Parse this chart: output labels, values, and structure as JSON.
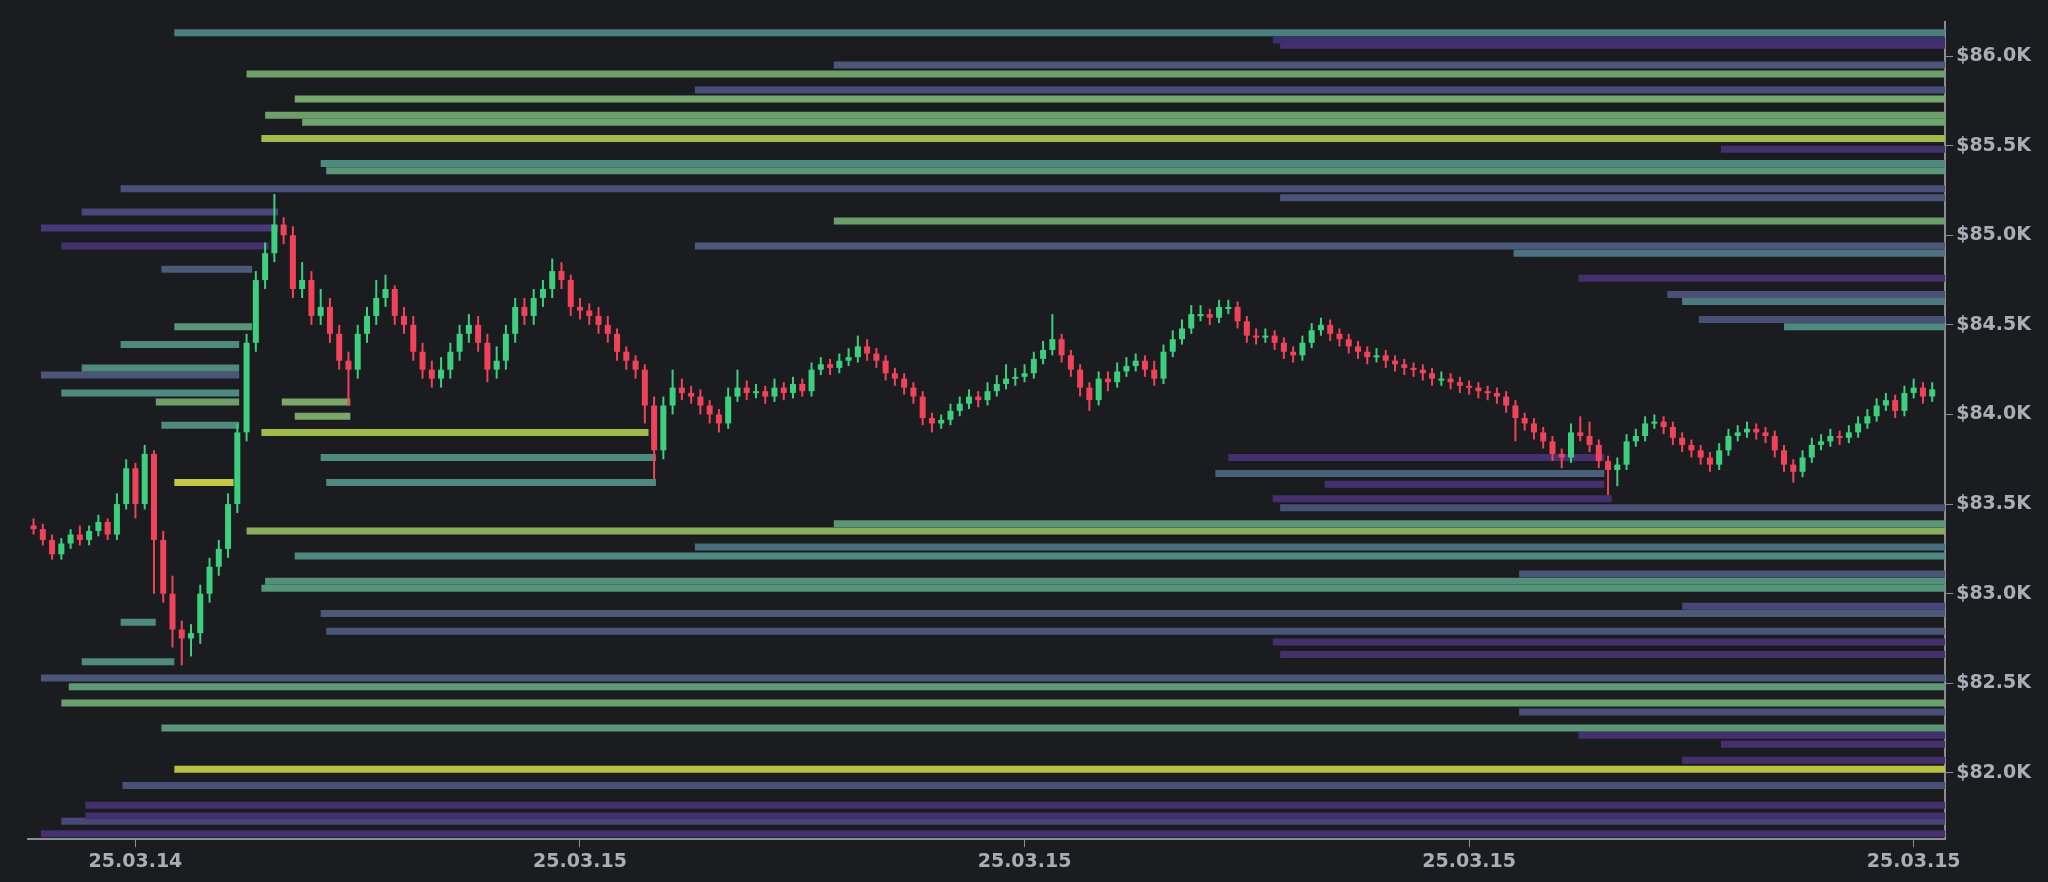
{
  "chart_data": {
    "type": "candlestick",
    "x": [
      "--03-14T21:05",
      "--03-14T21:10",
      "--03-14T21:15",
      "--03-14T21:20",
      "--03-14T21:25",
      "--03-14T21:30",
      "--03-14T21:35",
      "--03-14T21:40",
      "--03-14T21:45",
      "--03-14T21:50",
      "--03-14T21:55",
      "--03-14T22:00",
      "--03-14T22:05",
      "--03-14T22:10",
      "--03-14T22:15",
      "--03-14T22:20",
      "--03-14T22:25",
      "--03-14T22:30",
      "--03-14T22:35",
      "--03-14T22:40",
      "--03-14T22:45",
      "--03-14T22:50",
      "--03-14T22:55",
      "--03-14T23:00",
      "--03-14T23:05",
      "--03-14T23:10",
      "--03-14T23:15",
      "--03-14T23:20",
      "--03-14T23:25",
      "--03-14T23:30",
      "--03-14T23:35",
      "--03-14T23:40",
      "--03-14T23:45",
      "--03-14T23:50",
      "--03-14T23:55",
      "--03-15T00:00",
      "--03-15T00:05",
      "--03-15T00:10",
      "--03-15T00:15",
      "--03-15T00:20",
      "--03-15T00:25",
      "--03-15T00:30",
      "--03-15T00:35",
      "--03-15T00:40",
      "--03-15T00:45",
      "--03-15T00:50",
      "--03-15T00:55",
      "--03-15T01:00",
      "--03-15T01:05",
      "--03-15T01:10",
      "--03-15T01:15",
      "--03-15T01:20",
      "--03-15T01:25",
      "--03-15T01:30",
      "--03-15T01:35",
      "--03-15T01:40",
      "--03-15T01:45",
      "--03-15T01:50",
      "--03-15T01:55",
      "--03-15T02:00",
      "--03-15T02:05",
      "--03-15T02:10",
      "--03-15T02:15",
      "--03-15T02:20",
      "--03-15T02:25",
      "--03-15T02:30",
      "--03-15T02:35",
      "--03-15T02:40",
      "--03-15T02:45",
      "--03-15T02:50",
      "--03-15T02:55",
      "--03-15T03:00",
      "--03-15T03:05",
      "--03-15T03:10",
      "--03-15T03:15",
      "--03-15T03:20",
      "--03-15T03:25",
      "--03-15T03:30",
      "--03-15T03:35",
      "--03-15T03:40",
      "--03-15T03:45",
      "--03-15T03:50",
      "--03-15T03:55",
      "--03-15T04:00",
      "--03-15T04:05",
      "--03-15T04:10",
      "--03-15T04:15",
      "--03-15T04:20",
      "--03-15T04:25",
      "--03-15T04:30",
      "--03-15T04:35",
      "--03-15T04:40",
      "--03-15T04:45",
      "--03-15T04:50",
      "--03-15T04:55",
      "--03-15T05:00",
      "--03-15T05:05",
      "--03-15T05:10",
      "--03-15T05:15",
      "--03-15T05:20",
      "--03-15T05:25",
      "--03-15T05:30",
      "--03-15T05:35",
      "--03-15T05:40",
      "--03-15T05:45",
      "--03-15T05:50",
      "--03-15T05:55",
      "--03-15T06:00",
      "--03-15T06:05",
      "--03-15T06:10",
      "--03-15T06:15",
      "--03-15T06:20",
      "--03-15T06:25",
      "--03-15T06:30",
      "--03-15T06:35",
      "--03-15T06:40",
      "--03-15T06:45",
      "--03-15T06:50",
      "--03-15T06:55",
      "--03-15T07:00",
      "--03-15T07:05",
      "--03-15T07:10",
      "--03-15T07:15",
      "--03-15T07:20",
      "--03-15T07:25",
      "--03-15T07:30",
      "--03-15T07:35",
      "--03-15T07:40",
      "--03-15T07:45",
      "--03-15T07:50",
      "--03-15T07:55",
      "--03-15T08:00",
      "--03-15T08:05",
      "--03-15T08:10",
      "--03-15T08:15",
      "--03-15T08:20",
      "--03-15T08:25",
      "--03-15T08:30",
      "--03-15T08:35",
      "--03-15T08:40",
      "--03-15T08:45",
      "--03-15T08:50",
      "--03-15T08:55",
      "--03-15T09:00",
      "--03-15T09:05",
      "--03-15T09:10",
      "--03-15T09:15",
      "--03-15T09:20",
      "--03-15T09:25",
      "--03-15T09:30",
      "--03-15T09:35",
      "--03-15T09:40",
      "--03-15T09:45",
      "--03-15T09:50",
      "--03-15T09:55",
      "--03-15T10:00",
      "--03-15T10:05",
      "--03-15T10:10",
      "--03-15T10:15",
      "--03-15T10:20",
      "--03-15T10:25",
      "--03-15T10:30",
      "--03-15T10:35",
      "--03-15T10:40",
      "--03-15T10:45",
      "--03-15T10:50",
      "--03-15T10:55",
      "--03-15T11:00",
      "--03-15T11:05",
      "--03-15T11:10",
      "--03-15T11:15",
      "--03-15T11:20",
      "--03-15T11:25",
      "--03-15T11:30",
      "--03-15T11:35",
      "--03-15T11:40",
      "--03-15T11:45",
      "--03-15T11:50",
      "--03-15T11:55",
      "--03-15T12:00",
      "--03-15T12:05",
      "--03-15T12:10",
      "--03-15T12:15",
      "--03-15T12:20",
      "--03-15T12:25",
      "--03-15T12:30",
      "--03-15T12:35",
      "--03-15T12:40",
      "--03-15T12:45",
      "--03-15T12:50",
      "--03-15T12:55",
      "--03-15T13:00",
      "--03-15T13:05",
      "--03-15T13:10",
      "--03-15T13:15",
      "--03-15T13:20",
      "--03-15T13:25",
      "--03-15T13:30",
      "--03-15T13:35",
      "--03-15T13:40",
      "--03-15T13:45",
      "--03-15T13:50",
      "--03-15T13:55",
      "--03-15T14:00",
      "--03-15T14:05",
      "--03-15T14:10"
    ],
    "ohlc": [
      [
        83380,
        83420,
        83330,
        83360
      ],
      [
        83360,
        83390,
        83270,
        83300
      ],
      [
        83300,
        83330,
        83190,
        83220
      ],
      [
        83220,
        83310,
        83190,
        83280
      ],
      [
        83280,
        83360,
        83250,
        83330
      ],
      [
        83330,
        83380,
        83270,
        83300
      ],
      [
        83300,
        83380,
        83270,
        83350
      ],
      [
        83350,
        83440,
        83320,
        83400
      ],
      [
        83400,
        83420,
        83300,
        83330
      ],
      [
        83330,
        83560,
        83300,
        83500
      ],
      [
        83500,
        83750,
        83470,
        83700
      ],
      [
        83700,
        83730,
        83420,
        83500
      ],
      [
        83500,
        83830,
        83470,
        83780
      ],
      [
        83780,
        83800,
        83000,
        83300
      ],
      [
        83300,
        83350,
        82950,
        83000
      ],
      [
        83000,
        83100,
        82700,
        82800
      ],
      [
        82800,
        82850,
        82600,
        82750
      ],
      [
        82750,
        82830,
        82650,
        82780
      ],
      [
        82780,
        83050,
        82720,
        83000
      ],
      [
        83000,
        83200,
        82950,
        83150
      ],
      [
        83150,
        83300,
        83100,
        83250
      ],
      [
        83250,
        83560,
        83200,
        83500
      ],
      [
        83500,
        83950,
        83450,
        83900
      ],
      [
        83900,
        84450,
        83850,
        84400
      ],
      [
        84400,
        84800,
        84350,
        84750
      ],
      [
        84750,
        84960,
        84700,
        84900
      ],
      [
        84900,
        85230,
        84850,
        85060
      ],
      [
        85060,
        85100,
        84950,
        85000
      ],
      [
        85000,
        85050,
        84650,
        84700
      ],
      [
        84700,
        84850,
        84650,
        84750
      ],
      [
        84750,
        84800,
        84500,
        84550
      ],
      [
        84550,
        84700,
        84500,
        84600
      ],
      [
        84600,
        84650,
        84400,
        84450
      ],
      [
        84450,
        84500,
        84250,
        84300
      ],
      [
        84300,
        84350,
        84050,
        84250
      ],
      [
        84250,
        84500,
        84200,
        84450
      ],
      [
        84450,
        84600,
        84400,
        84550
      ],
      [
        84550,
        84750,
        84500,
        84650
      ],
      [
        84650,
        84780,
        84600,
        84700
      ],
      [
        84700,
        84720,
        84500,
        84550
      ],
      [
        84550,
        84600,
        84450,
        84500
      ],
      [
        84500,
        84550,
        84300,
        84350
      ],
      [
        84350,
        84400,
        84200,
        84250
      ],
      [
        84250,
        84300,
        84150,
        84200
      ],
      [
        84200,
        84320,
        84150,
        84250
      ],
      [
        84250,
        84400,
        84200,
        84350
      ],
      [
        84350,
        84500,
        84300,
        84450
      ],
      [
        84450,
        84560,
        84400,
        84500
      ],
      [
        84500,
        84550,
        84350,
        84400
      ],
      [
        84400,
        84450,
        84180,
        84250
      ],
      [
        84250,
        84380,
        84200,
        84300
      ],
      [
        84300,
        84500,
        84250,
        84450
      ],
      [
        84450,
        84650,
        84400,
        84600
      ],
      [
        84600,
        84650,
        84500,
        84550
      ],
      [
        84550,
        84700,
        84500,
        84650
      ],
      [
        84650,
        84750,
        84600,
        84700
      ],
      [
        84700,
        84870,
        84650,
        84800
      ],
      [
        84800,
        84850,
        84700,
        84750
      ],
      [
        84750,
        84780,
        84550,
        84600
      ],
      [
        84600,
        84650,
        84530,
        84580
      ],
      [
        84580,
        84620,
        84500,
        84550
      ],
      [
        84550,
        84600,
        84450,
        84500
      ],
      [
        84500,
        84550,
        84400,
        84450
      ],
      [
        84450,
        84480,
        84300,
        84350
      ],
      [
        84350,
        84380,
        84250,
        84300
      ],
      [
        84300,
        84330,
        84200,
        84250
      ],
      [
        84250,
        84280,
        83950,
        84050
      ],
      [
        84050,
        84100,
        83640,
        83800
      ],
      [
        83800,
        84100,
        83750,
        84050
      ],
      [
        84050,
        84250,
        84000,
        84150
      ],
      [
        84150,
        84200,
        84080,
        84120
      ],
      [
        84120,
        84160,
        84060,
        84100
      ],
      [
        84100,
        84140,
        84000,
        84050
      ],
      [
        84050,
        84080,
        83950,
        84000
      ],
      [
        84000,
        84030,
        83900,
        83950
      ],
      [
        83950,
        84150,
        83920,
        84100
      ],
      [
        84100,
        84250,
        84070,
        84150
      ],
      [
        84150,
        84190,
        84080,
        84120
      ],
      [
        84120,
        84170,
        84090,
        84130
      ],
      [
        84130,
        84160,
        84060,
        84100
      ],
      [
        84100,
        84200,
        84070,
        84150
      ],
      [
        84150,
        84180,
        84080,
        84120
      ],
      [
        84120,
        84210,
        84090,
        84170
      ],
      [
        84170,
        84200,
        84100,
        84130
      ],
      [
        84130,
        84290,
        84100,
        84250
      ],
      [
        84250,
        84320,
        84220,
        84280
      ],
      [
        84280,
        84310,
        84220,
        84260
      ],
      [
        84260,
        84340,
        84230,
        84300
      ],
      [
        84300,
        84370,
        84270,
        84320
      ],
      [
        84320,
        84440,
        84290,
        84380
      ],
      [
        84380,
        84420,
        84300,
        84340
      ],
      [
        84340,
        84370,
        84260,
        84300
      ],
      [
        84300,
        84330,
        84190,
        84230
      ],
      [
        84230,
        84260,
        84160,
        84200
      ],
      [
        84200,
        84230,
        84110,
        84150
      ],
      [
        84150,
        84180,
        84060,
        84100
      ],
      [
        84100,
        84130,
        83940,
        83980
      ],
      [
        83980,
        84010,
        83900,
        83950
      ],
      [
        83950,
        84000,
        83920,
        83970
      ],
      [
        83970,
        84060,
        83940,
        84020
      ],
      [
        84020,
        84100,
        83990,
        84060
      ],
      [
        84060,
        84140,
        84030,
        84100
      ],
      [
        84100,
        84130,
        84040,
        84080
      ],
      [
        84080,
        84180,
        84050,
        84130
      ],
      [
        84130,
        84220,
        84100,
        84170
      ],
      [
        84170,
        84280,
        84140,
        84200
      ],
      [
        84200,
        84260,
        84160,
        84210
      ],
      [
        84210,
        84280,
        84180,
        84230
      ],
      [
        84230,
        84350,
        84200,
        84310
      ],
      [
        84310,
        84410,
        84280,
        84360
      ],
      [
        84360,
        84560,
        84330,
        84420
      ],
      [
        84420,
        84450,
        84290,
        84330
      ],
      [
        84330,
        84360,
        84210,
        84250
      ],
      [
        84250,
        84280,
        84100,
        84150
      ],
      [
        84150,
        84180,
        84020,
        84080
      ],
      [
        84080,
        84240,
        84050,
        84200
      ],
      [
        84200,
        84240,
        84130,
        84180
      ],
      [
        84180,
        84290,
        84150,
        84240
      ],
      [
        84240,
        84320,
        84210,
        84270
      ],
      [
        84270,
        84340,
        84240,
        84300
      ],
      [
        84300,
        84330,
        84210,
        84250
      ],
      [
        84250,
        84300,
        84160,
        84200
      ],
      [
        84200,
        84390,
        84170,
        84350
      ],
      [
        84350,
        84470,
        84320,
        84420
      ],
      [
        84420,
        84530,
        84390,
        84480
      ],
      [
        84480,
        84610,
        84450,
        84560
      ],
      [
        84560,
        84610,
        84520,
        84560
      ],
      [
        84560,
        84590,
        84500,
        84540
      ],
      [
        84540,
        84640,
        84510,
        84600
      ],
      [
        84600,
        84640,
        84560,
        84600
      ],
      [
        84600,
        84630,
        84480,
        84520
      ],
      [
        84520,
        84550,
        84400,
        84440
      ],
      [
        84440,
        84480,
        84390,
        84430
      ],
      [
        84430,
        84480,
        84400,
        84440
      ],
      [
        84440,
        84470,
        84360,
        84400
      ],
      [
        84400,
        84430,
        84310,
        84350
      ],
      [
        84350,
        84380,
        84290,
        84330
      ],
      [
        84330,
        84440,
        84300,
        84400
      ],
      [
        84400,
        84510,
        84370,
        84470
      ],
      [
        84470,
        84540,
        84440,
        84500
      ],
      [
        84500,
        84530,
        84410,
        84450
      ],
      [
        84450,
        84480,
        84380,
        84420
      ],
      [
        84420,
        84450,
        84340,
        84380
      ],
      [
        84380,
        84410,
        84310,
        84350
      ],
      [
        84350,
        84380,
        84280,
        84320
      ],
      [
        84320,
        84370,
        84290,
        84330
      ],
      [
        84330,
        84360,
        84260,
        84300
      ],
      [
        84300,
        84330,
        84240,
        84280
      ],
      [
        84280,
        84310,
        84220,
        84260
      ],
      [
        84260,
        84290,
        84210,
        84250
      ],
      [
        84250,
        84280,
        84190,
        84230
      ],
      [
        84230,
        84260,
        84160,
        84200
      ],
      [
        84200,
        84240,
        84160,
        84200
      ],
      [
        84200,
        84230,
        84140,
        84180
      ],
      [
        84180,
        84210,
        84120,
        84160
      ],
      [
        84160,
        84190,
        84110,
        84150
      ],
      [
        84150,
        84180,
        84090,
        84130
      ],
      [
        84130,
        84160,
        84080,
        84120
      ],
      [
        84120,
        84150,
        84060,
        84100
      ],
      [
        84100,
        84130,
        84010,
        84050
      ],
      [
        84050,
        84080,
        83850,
        83980
      ],
      [
        83980,
        84010,
        83910,
        83950
      ],
      [
        83950,
        83980,
        83860,
        83900
      ],
      [
        83900,
        83930,
        83810,
        83850
      ],
      [
        83850,
        83880,
        83740,
        83780
      ],
      [
        83780,
        83810,
        83700,
        83760
      ],
      [
        83760,
        83950,
        83730,
        83900
      ],
      [
        83900,
        83990,
        83850,
        83880
      ],
      [
        83880,
        83960,
        83790,
        83830
      ],
      [
        83830,
        83860,
        83700,
        83740
      ],
      [
        83740,
        83770,
        83550,
        83690
      ],
      [
        83690,
        83760,
        83600,
        83720
      ],
      [
        83720,
        83890,
        83690,
        83850
      ],
      [
        83850,
        83920,
        83820,
        83880
      ],
      [
        83880,
        83990,
        83850,
        83950
      ],
      [
        83950,
        84000,
        83920,
        83960
      ],
      [
        83960,
        83990,
        83890,
        83930
      ],
      [
        83930,
        83960,
        83830,
        83870
      ],
      [
        83870,
        83900,
        83790,
        83830
      ],
      [
        83830,
        83860,
        83760,
        83800
      ],
      [
        83800,
        83830,
        83720,
        83760
      ],
      [
        83760,
        83790,
        83680,
        83720
      ],
      [
        83720,
        83840,
        83690,
        83800
      ],
      [
        83800,
        83920,
        83770,
        83880
      ],
      [
        83880,
        83940,
        83850,
        83900
      ],
      [
        83900,
        83960,
        83870,
        83920
      ],
      [
        83920,
        83950,
        83860,
        83900
      ],
      [
        83900,
        83930,
        83840,
        83880
      ],
      [
        83880,
        83910,
        83760,
        83800
      ],
      [
        83800,
        83830,
        83680,
        83720
      ],
      [
        83720,
        83750,
        83620,
        83680
      ],
      [
        83680,
        83800,
        83650,
        83760
      ],
      [
        83760,
        83870,
        83730,
        83830
      ],
      [
        83830,
        83890,
        83800,
        83850
      ],
      [
        83850,
        83920,
        83820,
        83880
      ],
      [
        83880,
        83910,
        83830,
        83870
      ],
      [
        83870,
        83940,
        83840,
        83900
      ],
      [
        83900,
        83990,
        83870,
        83950
      ],
      [
        83950,
        84030,
        83920,
        83990
      ],
      [
        83990,
        84090,
        83960,
        84050
      ],
      [
        84050,
        84120,
        84020,
        84080
      ],
      [
        84080,
        84110,
        83980,
        84020
      ],
      [
        84020,
        84160,
        83990,
        84120
      ],
      [
        84120,
        84200,
        84090,
        84150
      ],
      [
        84150,
        84180,
        84060,
        84100
      ],
      [
        84100,
        84180,
        84070,
        84140
      ]
    ],
    "series": [
      {
        "type": "line",
        "x": [
          "--03-14T22:21",
          "--03-15T14:17"
        ],
        "values": [
          86130,
          86130
        ],
        "color": "#4a7f80"
      },
      {
        "type": "line",
        "x": [
          "--03-15T08:14",
          "--03-15T14:17"
        ],
        "values": [
          86090,
          86090
        ],
        "color": "#3d2f6b"
      },
      {
        "type": "line",
        "x": [
          "--03-15T08:18",
          "--03-15T14:17"
        ],
        "values": [
          86060,
          86060
        ],
        "color": "#45306e"
      },
      {
        "type": "line",
        "x": [
          "--03-15T04:17",
          "--03-15T14:17"
        ],
        "values": [
          85950,
          85950
        ],
        "color": "#4a5778"
      },
      {
        "type": "line",
        "x": [
          "--03-14T23:00",
          "--03-15T14:17"
        ],
        "values": [
          85900,
          85900
        ],
        "color": "#6e9f6a"
      },
      {
        "type": "line",
        "x": [
          "--03-15T03:02",
          "--03-15T14:17"
        ],
        "values": [
          85810,
          85810
        ],
        "color": "#4a4f78"
      },
      {
        "type": "line",
        "x": [
          "--03-14T23:26",
          "--03-15T14:17"
        ],
        "values": [
          85760,
          85760
        ],
        "color": "#75a86a"
      },
      {
        "type": "line",
        "x": [
          "--03-14T23:10",
          "--03-15T14:17"
        ],
        "values": [
          85670,
          85670
        ],
        "color": "#6e9f6a"
      },
      {
        "type": "line",
        "x": [
          "--03-14T23:30",
          "--03-15T14:17"
        ],
        "values": [
          85630,
          85630
        ],
        "color": "#6ba46c"
      },
      {
        "type": "line",
        "x": [
          "--03-14T23:08",
          "--03-15T14:17"
        ],
        "values": [
          85540,
          85540
        ],
        "color": "#a0bb4a"
      },
      {
        "type": "line",
        "x": [
          "--03-15T12:16",
          "--03-15T14:17"
        ],
        "values": [
          85480,
          85480
        ],
        "color": "#45306e"
      },
      {
        "type": "line",
        "x": [
          "--03-14T23:40",
          "--03-15T14:17"
        ],
        "values": [
          85400,
          85400
        ],
        "color": "#4e8a80"
      },
      {
        "type": "line",
        "x": [
          "--03-14T23:43",
          "--03-15T14:17"
        ],
        "values": [
          85360,
          85360
        ],
        "color": "#5a9678"
      },
      {
        "type": "line",
        "x": [
          "--03-14T21:52",
          "--03-15T14:17"
        ],
        "values": [
          85260,
          85260
        ],
        "color": "#4a5078"
      },
      {
        "type": "line",
        "x": [
          "--03-15T08:18",
          "--03-15T14:17"
        ],
        "values": [
          85210,
          85210
        ],
        "color": "#4a5578"
      },
      {
        "type": "line",
        "x": [
          "--03-14T21:31",
          "--03-14T23:17"
        ],
        "values": [
          85130,
          85130
        ],
        "color": "#4a4678"
      },
      {
        "type": "line",
        "x": [
          "--03-15T04:17",
          "--03-15T14:17"
        ],
        "values": [
          85080,
          85080
        ],
        "color": "#6a9f6c"
      },
      {
        "type": "line",
        "x": [
          "--03-14T21:09",
          "--03-14T23:17"
        ],
        "values": [
          85040,
          85040
        ],
        "color": "#483a78"
      },
      {
        "type": "line",
        "x": [
          "--03-14T21:20",
          "--03-14T23:12"
        ],
        "values": [
          84940,
          84940
        ],
        "color": "#45306e"
      },
      {
        "type": "line",
        "x": [
          "--03-15T03:02",
          "--03-15T14:17"
        ],
        "values": [
          84940,
          84940
        ],
        "color": "#4a5a78"
      },
      {
        "type": "line",
        "x": [
          "--03-15T10:24",
          "--03-15T14:17"
        ],
        "values": [
          84900,
          84900
        ],
        "color": "#4e7080"
      },
      {
        "type": "line",
        "x": [
          "--03-14T22:14",
          "--03-14T23:03"
        ],
        "values": [
          84810,
          84810
        ],
        "color": "#4a5a78"
      },
      {
        "type": "line",
        "x": [
          "--03-15T10:59",
          "--03-15T14:17"
        ],
        "values": [
          84760,
          84760
        ],
        "color": "#45306e"
      },
      {
        "type": "line",
        "x": [
          "--03-15T11:47",
          "--03-15T14:17"
        ],
        "values": [
          84670,
          84670
        ],
        "color": "#4a5078"
      },
      {
        "type": "line",
        "x": [
          "--03-15T11:55",
          "--03-15T14:17"
        ],
        "values": [
          84630,
          84630
        ],
        "color": "#4f7a80"
      },
      {
        "type": "line",
        "x": [
          "--03-15T12:04",
          "--03-15T14:17"
        ],
        "values": [
          84530,
          84530
        ],
        "color": "#4a4f78"
      },
      {
        "type": "line",
        "x": [
          "--03-14T22:21",
          "--03-14T23:03"
        ],
        "values": [
          84490,
          84490
        ],
        "color": "#5a9678"
      },
      {
        "type": "line",
        "x": [
          "--03-15T12:50",
          "--03-15T14:17"
        ],
        "values": [
          84490,
          84490
        ],
        "color": "#4e8a80"
      },
      {
        "type": "line",
        "x": [
          "--03-14T21:52",
          "--03-14T22:56"
        ],
        "values": [
          84390,
          84390
        ],
        "color": "#4e8a80"
      },
      {
        "type": "line",
        "x": [
          "--03-14T21:31",
          "--03-14T22:56"
        ],
        "values": [
          84260,
          84260
        ],
        "color": "#4e8a80"
      },
      {
        "type": "line",
        "x": [
          "--03-14T21:09",
          "--03-14T22:56"
        ],
        "values": [
          84220,
          84220
        ],
        "color": "#4a5578"
      },
      {
        "type": "line",
        "x": [
          "--03-14T21:20",
          "--03-14T22:56"
        ],
        "values": [
          84120,
          84120
        ],
        "color": "#4e8a80"
      },
      {
        "type": "line",
        "x": [
          "--03-14T22:11",
          "--03-14T22:56"
        ],
        "values": [
          84070,
          84070
        ],
        "color": "#6e9f6a"
      },
      {
        "type": "line",
        "x": [
          "--03-14T23:19",
          "--03-14T23:56"
        ],
        "values": [
          84070,
          84070
        ],
        "color": "#7aa868"
      },
      {
        "type": "line",
        "x": [
          "--03-14T22:14",
          "--03-14T22:56"
        ],
        "values": [
          83940,
          83940
        ],
        "color": "#4e8a80"
      },
      {
        "type": "line",
        "x": [
          "--03-14T23:26",
          "--03-14T23:56"
        ],
        "values": [
          83990,
          83990
        ],
        "color": "#7aa868"
      },
      {
        "type": "line",
        "x": [
          "--03-14T23:08",
          "--03-15T02:37"
        ],
        "values": [
          83900,
          83900
        ],
        "color": "#a0bb4a"
      },
      {
        "type": "line",
        "x": [
          "--03-14T23:40",
          "--03-15T02:41"
        ],
        "values": [
          83760,
          83760
        ],
        "color": "#4e8a80"
      },
      {
        "type": "line",
        "x": [
          "--03-14T22:21",
          "--03-14T22:53"
        ],
        "values": [
          83620,
          83620
        ],
        "color": "#c4c845"
      },
      {
        "type": "line",
        "x": [
          "--03-14T23:43",
          "--03-15T02:41"
        ],
        "values": [
          83620,
          83620
        ],
        "color": "#4e8a80"
      },
      {
        "type": "line",
        "x": [
          "--03-15T07:50",
          "--03-15T11:13"
        ],
        "values": [
          83760,
          83760
        ],
        "color": "#45306e"
      },
      {
        "type": "line",
        "x": [
          "--03-15T07:43",
          "--03-15T11:13"
        ],
        "values": [
          83670,
          83670
        ],
        "color": "#4a6078"
      },
      {
        "type": "line",
        "x": [
          "--03-15T08:42",
          "--03-15T11:13"
        ],
        "values": [
          83610,
          83610
        ],
        "color": "#45306e"
      },
      {
        "type": "line",
        "x": [
          "--03-15T08:14",
          "--03-15T11:17"
        ],
        "values": [
          83530,
          83530
        ],
        "color": "#45306e"
      },
      {
        "type": "line",
        "x": [
          "--03-15T08:18",
          "--03-15T14:17"
        ],
        "values": [
          83480,
          83480
        ],
        "color": "#4a4f78"
      },
      {
        "type": "line",
        "x": [
          "--03-15T04:17",
          "--03-15T14:17"
        ],
        "values": [
          83390,
          83390
        ],
        "color": "#5a9678"
      },
      {
        "type": "line",
        "x": [
          "--03-14T23:00",
          "--03-15T14:17"
        ],
        "values": [
          83350,
          83350
        ],
        "color": "#8aad5c"
      },
      {
        "type": "line",
        "x": [
          "--03-15T03:02",
          "--03-15T14:17"
        ],
        "values": [
          83260,
          83260
        ],
        "color": "#4a7080"
      },
      {
        "type": "line",
        "x": [
          "--03-14T23:26",
          "--03-15T14:17"
        ],
        "values": [
          83210,
          83210
        ],
        "color": "#4e8a80"
      },
      {
        "type": "line",
        "x": [
          "--03-15T10:27",
          "--03-15T14:17"
        ],
        "values": [
          83110,
          83110
        ],
        "color": "#4a5578"
      },
      {
        "type": "line",
        "x": [
          "--03-14T23:10",
          "--03-15T14:17"
        ],
        "values": [
          83070,
          83070
        ],
        "color": "#548f7c"
      },
      {
        "type": "line",
        "x": [
          "--03-14T23:08",
          "--03-15T14:17"
        ],
        "values": [
          83030,
          83030
        ],
        "color": "#55957a"
      },
      {
        "type": "line",
        "x": [
          "--03-15T11:55",
          "--03-15T14:17"
        ],
        "values": [
          82930,
          82930
        ],
        "color": "#4a4678"
      },
      {
        "type": "line",
        "x": [
          "--03-14T23:40",
          "--03-15T14:17"
        ],
        "values": [
          82890,
          82890
        ],
        "color": "#4a5a78"
      },
      {
        "type": "line",
        "x": [
          "--03-14T23:43",
          "--03-15T14:17"
        ],
        "values": [
          82790,
          82790
        ],
        "color": "#4a5578"
      },
      {
        "type": "line",
        "x": [
          "--03-14T21:52",
          "--03-14T22:11"
        ],
        "values": [
          82840,
          82840
        ],
        "color": "#4e8a80"
      },
      {
        "type": "line",
        "x": [
          "--03-15T08:14",
          "--03-15T14:17"
        ],
        "values": [
          82730,
          82730
        ],
        "color": "#45306e"
      },
      {
        "type": "line",
        "x": [
          "--03-15T08:18",
          "--03-15T14:17"
        ],
        "values": [
          82660,
          82660
        ],
        "color": "#45306e"
      },
      {
        "type": "line",
        "x": [
          "--03-14T21:31",
          "--03-14T22:21"
        ],
        "values": [
          82620,
          82620
        ],
        "color": "#4e8a80"
      },
      {
        "type": "line",
        "x": [
          "--03-14T21:09",
          "--03-15T14:17"
        ],
        "values": [
          82530,
          82530
        ],
        "color": "#4a5578"
      },
      {
        "type": "line",
        "x": [
          "--03-14T21:24",
          "--03-15T14:17"
        ],
        "values": [
          82480,
          82480
        ],
        "color": "#5f9a74"
      },
      {
        "type": "line",
        "x": [
          "--03-14T21:20",
          "--03-15T14:17"
        ],
        "values": [
          82390,
          82390
        ],
        "color": "#6aa06c"
      },
      {
        "type": "line",
        "x": [
          "--03-15T10:27",
          "--03-15T14:17"
        ],
        "values": [
          82340,
          82340
        ],
        "color": "#4a4f78"
      },
      {
        "type": "line",
        "x": [
          "--03-14T22:14",
          "--03-15T14:17"
        ],
        "values": [
          82250,
          82250
        ],
        "color": "#5a9678"
      },
      {
        "type": "line",
        "x": [
          "--03-15T10:59",
          "--03-15T14:17"
        ],
        "values": [
          82210,
          82210
        ],
        "color": "#45306e"
      },
      {
        "type": "line",
        "x": [
          "--03-15T12:16",
          "--03-15T14:17"
        ],
        "values": [
          82160,
          82160
        ],
        "color": "#45306e"
      },
      {
        "type": "line",
        "x": [
          "--03-15T11:55",
          "--03-15T14:17"
        ],
        "values": [
          82070,
          82070
        ],
        "color": "#45306e"
      },
      {
        "type": "line",
        "x": [
          "--03-14T22:21",
          "--03-15T14:17"
        ],
        "values": [
          82020,
          82020
        ],
        "color": "#b8c240"
      },
      {
        "type": "line",
        "x": [
          "--03-14T21:53",
          "--03-15T14:17"
        ],
        "values": [
          81930,
          81930
        ],
        "color": "#4a5078"
      },
      {
        "type": "line",
        "x": [
          "--03-14T21:33",
          "--03-15T14:17"
        ],
        "values": [
          81820,
          81820
        ],
        "color": "#45306e"
      },
      {
        "type": "line",
        "x": [
          "--03-14T21:33",
          "--03-15T14:17"
        ],
        "values": [
          81760,
          81760
        ],
        "color": "#45306e"
      },
      {
        "type": "line",
        "x": [
          "--03-14T21:20",
          "--03-15T14:17"
        ],
        "values": [
          81730,
          81730
        ],
        "color": "#4a4678"
      },
      {
        "type": "line",
        "x": [
          "--03-14T21:09",
          "--03-15T14:17"
        ],
        "values": [
          81660,
          81660
        ],
        "color": "#45306e"
      }
    ],
    "xlim": [
      "--03-14T21:02",
      "--03-15T14:17"
    ],
    "xticks": [
      {
        "value": "--03-14T22:00",
        "label": "25.03.14"
      },
      {
        "value": "--03-15T02:00",
        "label": "25.03.15"
      },
      {
        "value": "--03-15T06:00",
        "label": "25.03.15"
      },
      {
        "value": "--03-15T10:00",
        "label": "25.03.15"
      },
      {
        "value": "--03-15T14:00",
        "label": "25.03.15"
      }
    ],
    "ylim": [
      81630,
      86190
    ],
    "yticks": [
      {
        "value": 82000,
        "label": "$82.0K"
      },
      {
        "value": 82500,
        "label": "$82.5K"
      },
      {
        "value": 83000,
        "label": "$83.0K"
      },
      {
        "value": 83500,
        "label": "$83.5K"
      },
      {
        "value": 84000,
        "label": "$84.0K"
      },
      {
        "value": 84500,
        "label": "$84.5K"
      },
      {
        "value": 85000,
        "label": "$85.0K"
      },
      {
        "value": 85500,
        "label": "$85.5K"
      },
      {
        "value": 86000,
        "label": "$86.0K"
      }
    ]
  }
}
